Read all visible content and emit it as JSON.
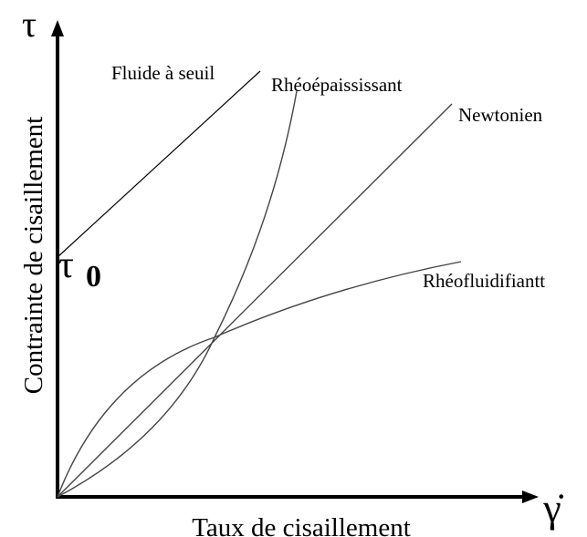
{
  "axes": {
    "y_symbol": "τ",
    "x_symbol": "γ̇",
    "y_label": "Contrainte de cisaillement",
    "x_label": "Taux de cisaillement"
  },
  "tau0": {
    "symbol": "τ",
    "subscript": "0"
  },
  "curves": [
    {
      "label": "Fluide à seuil"
    },
    {
      "label": "Rhéoépaississant"
    },
    {
      "label": "Newtonien"
    },
    {
      "label": "Rhéofluidifiantt"
    }
  ]
}
